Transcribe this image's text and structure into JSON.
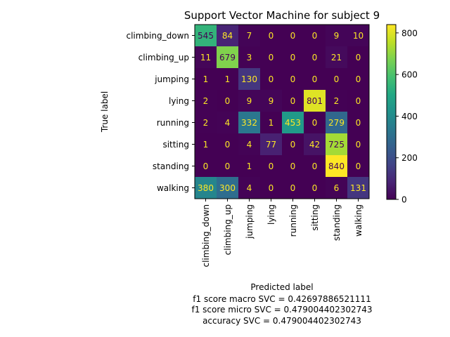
{
  "chart_data": {
    "type": "heatmap",
    "title": "Support Vector Machine for subject 9",
    "ylabel": "True label",
    "xlabel": "Predicted label",
    "footer_lines": [
      "f1 score macro SVC = 0.42697886521111",
      "f1 score micro SVC = 0.479004402302743",
      "accuracy SVC = 0.479004402302743"
    ],
    "row_labels": [
      "climbing_down",
      "climbing_up",
      "jumping",
      "lying",
      "running",
      "sitting",
      "standing",
      "walking"
    ],
    "col_labels": [
      "climbing_down",
      "climbing_up",
      "jumping",
      "lying",
      "running",
      "sitting",
      "standing",
      "walking"
    ],
    "values": [
      [
        545,
        84,
        7,
        0,
        0,
        0,
        9,
        10
      ],
      [
        11,
        679,
        3,
        0,
        0,
        0,
        21,
        0
      ],
      [
        1,
        1,
        130,
        0,
        0,
        0,
        0,
        0
      ],
      [
        2,
        0,
        9,
        9,
        0,
        801,
        2,
        0
      ],
      [
        2,
        4,
        332,
        1,
        453,
        0,
        279,
        0
      ],
      [
        1,
        0,
        4,
        77,
        0,
        42,
        725,
        0
      ],
      [
        0,
        0,
        1,
        0,
        0,
        0,
        840,
        0
      ],
      [
        380,
        300,
        4,
        0,
        0,
        0,
        6,
        131
      ]
    ],
    "colorbar": {
      "colormap": "viridis",
      "range": [
        0,
        840
      ],
      "ticks": [
        0,
        200,
        400,
        600,
        800
      ]
    }
  }
}
